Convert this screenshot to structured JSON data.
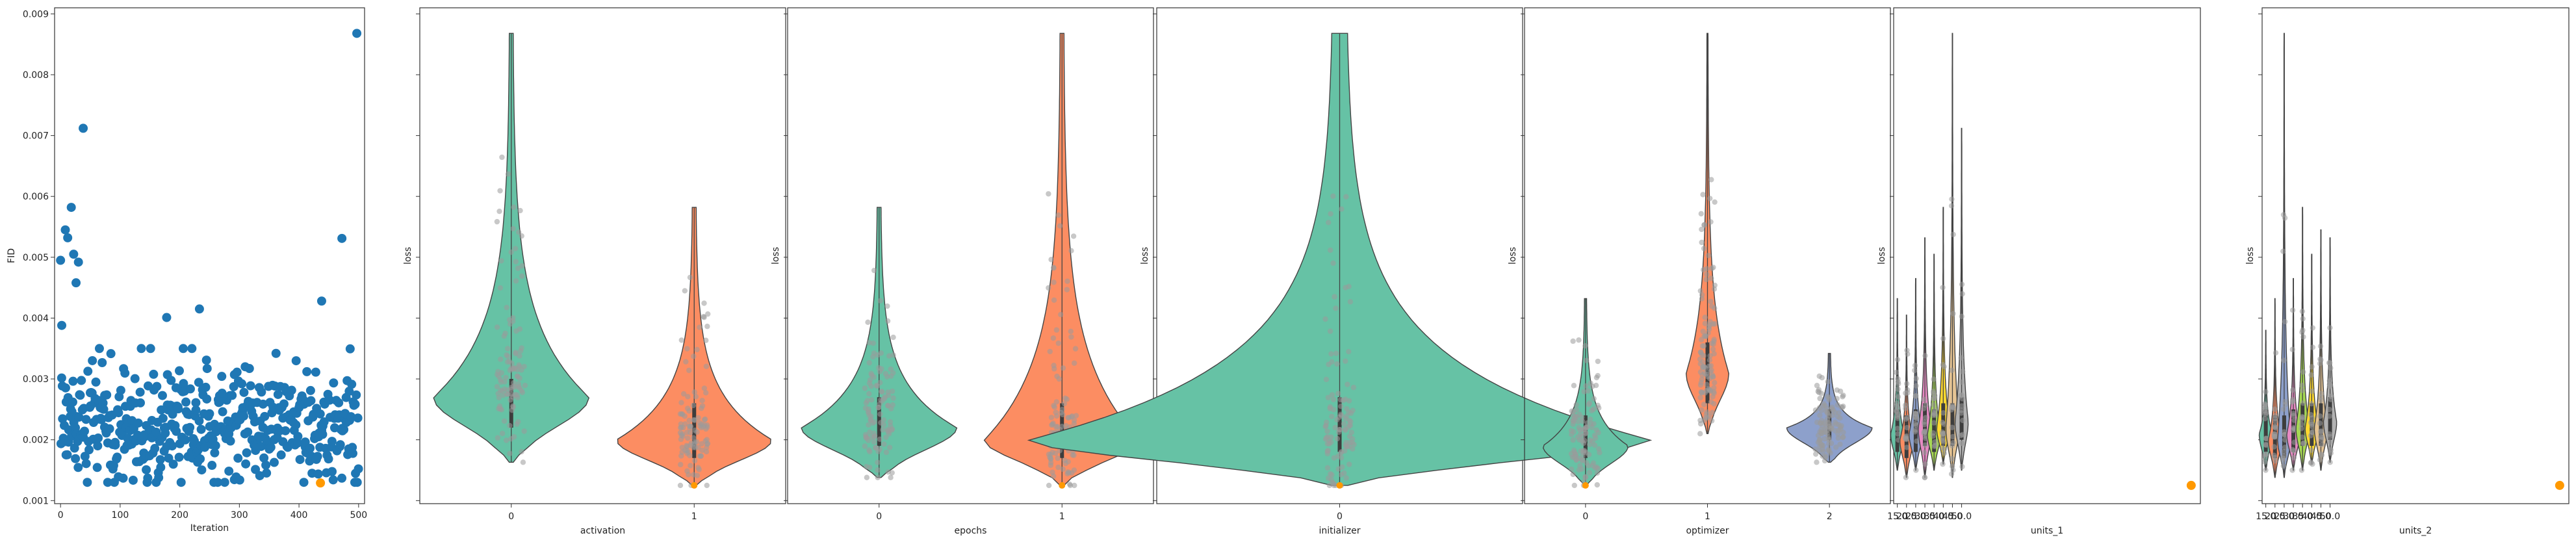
{
  "colors": {
    "scatter": "#1f77b4",
    "best": "#ff9900",
    "green": "#66c2a5",
    "orange": "#fc8d62",
    "blue": "#8da0cb",
    "jitter": "#9a9a9a",
    "frame": "#333333"
  },
  "chart_data": [
    {
      "type": "scatter",
      "xlabel": "Iteration",
      "ylabel": "FID",
      "xlim": [
        -10,
        510
      ],
      "ylim": [
        0.00095,
        0.0091
      ],
      "xticks": [
        "0",
        "100",
        "200",
        "300",
        "400",
        "500"
      ],
      "yticks": [
        "0.001",
        "0.002",
        "0.003",
        "0.004",
        "0.005",
        "0.006",
        "0.007",
        "0.008",
        "0.009"
      ],
      "highlight": {
        "x": 436,
        "y": 0.00129
      },
      "notable_points": [
        {
          "x": 0,
          "y": 0.00495
        },
        {
          "x": 2,
          "y": 0.00388
        },
        {
          "x": 8,
          "y": 0.00545
        },
        {
          "x": 12,
          "y": 0.00532
        },
        {
          "x": 18,
          "y": 0.00582
        },
        {
          "x": 22,
          "y": 0.00505
        },
        {
          "x": 26,
          "y": 0.00458
        },
        {
          "x": 30,
          "y": 0.00492
        },
        {
          "x": 38,
          "y": 0.00712
        },
        {
          "x": 178,
          "y": 0.00401
        },
        {
          "x": 233,
          "y": 0.00415
        },
        {
          "x": 438,
          "y": 0.00428
        },
        {
          "x": 472,
          "y": 0.00531
        },
        {
          "x": 497,
          "y": 0.00868
        }
      ],
      "bulk": {
        "count": 480,
        "low": 0.0013,
        "high": 0.0035,
        "median": 0.0021
      }
    },
    {
      "type": "violin",
      "xlabel": "activation",
      "ylabel": "loss",
      "categories": [
        "0",
        "1"
      ],
      "violins": [
        {
          "min": 0.00163,
          "max": 0.00868,
          "mode": 0.0027,
          "q1": 0.0022,
          "q3": 0.003,
          "width": 0.85,
          "color": "green"
        },
        {
          "min": 0.00125,
          "max": 0.00582,
          "mode": 0.002,
          "q1": 0.0017,
          "q3": 0.0026,
          "width": 0.85,
          "color": "orange"
        }
      ]
    },
    {
      "type": "violin",
      "xlabel": "epochs",
      "ylabel": "loss",
      "categories": [
        "0",
        "1"
      ],
      "violins": [
        {
          "min": 0.00138,
          "max": 0.00582,
          "mode": 0.0022,
          "q1": 0.0019,
          "q3": 0.0027,
          "width": 0.85,
          "color": "green"
        },
        {
          "min": 0.00125,
          "max": 0.00868,
          "mode": 0.002,
          "q1": 0.0017,
          "q3": 0.0026,
          "width": 0.85,
          "color": "orange"
        }
      ]
    },
    {
      "type": "violin",
      "xlabel": "initializer",
      "ylabel": "loss",
      "categories": [
        "0"
      ],
      "violins": [
        {
          "min": 0.00125,
          "max": 0.00868,
          "mode": 0.002,
          "q1": 0.0018,
          "q3": 0.0027,
          "width": 1.7,
          "color": "green"
        }
      ]
    },
    {
      "type": "violin",
      "xlabel": "optimizer",
      "ylabel": "loss",
      "categories": [
        "0",
        "1",
        "2"
      ],
      "violins": [
        {
          "min": 0.00125,
          "max": 0.00432,
          "mode": 0.0019,
          "q1": 0.0017,
          "q3": 0.0024,
          "width": 0.7,
          "color": "green"
        },
        {
          "min": 0.0021,
          "max": 0.00868,
          "mode": 0.0031,
          "q1": 0.0026,
          "q3": 0.0036,
          "width": 0.35,
          "color": "orange"
        },
        {
          "min": 0.00163,
          "max": 0.00342,
          "mode": 0.0022,
          "q1": 0.002,
          "q3": 0.0025,
          "width": 0.7,
          "color": "blue"
        }
      ]
    },
    {
      "type": "violin",
      "xlabel": "units_1",
      "ylabel": "loss",
      "categories": [
        "15.0",
        "20.0",
        "25.0",
        "30.0",
        "35.0",
        "40.0",
        "45.0",
        "50.0"
      ],
      "xlim": [
        13,
        180
      ],
      "best_point": {
        "x": 175,
        "y": 0.00125
      },
      "violins": [
        {
          "x": 15,
          "min": 0.0015,
          "max": 0.00432,
          "mode": 0.0021,
          "width": 3.6,
          "color": "green"
        },
        {
          "x": 20,
          "min": 0.00138,
          "max": 0.00405,
          "mode": 0.002,
          "width": 3.6,
          "color": "orange"
        },
        {
          "x": 25,
          "min": 0.0015,
          "max": 0.00465,
          "mode": 0.0021,
          "width": 3.6,
          "color": "blue"
        },
        {
          "x": 30,
          "min": 0.00138,
          "max": 0.00532,
          "mode": 0.0022,
          "width": 3.6,
          "color": "pink"
        },
        {
          "x": 35,
          "min": 0.0015,
          "max": 0.00505,
          "mode": 0.0021,
          "width": 3.6,
          "color": "lime"
        },
        {
          "x": 40,
          "min": 0.0016,
          "max": 0.00582,
          "mode": 0.0022,
          "width": 3.6,
          "color": "yellow"
        },
        {
          "x": 45,
          "min": 0.00138,
          "max": 0.00868,
          "mode": 0.0022,
          "width": 3.6,
          "color": "tan"
        },
        {
          "x": 50,
          "min": 0.0015,
          "max": 0.00712,
          "mode": 0.0023,
          "width": 3.6,
          "color": "grey"
        }
      ]
    },
    {
      "type": "violin",
      "xlabel": "units_2",
      "ylabel": "loss",
      "categories": [
        "15.0",
        "20.0",
        "25.0",
        "30.0",
        "35.0",
        "40.0",
        "45.0",
        "50.0"
      ],
      "xlim": [
        13,
        180
      ],
      "best_point": {
        "x": 175,
        "y": 0.00125
      },
      "violins": [
        {
          "x": 15,
          "min": 0.0015,
          "max": 0.0038,
          "mode": 0.0021,
          "width": 3.6,
          "color": "green"
        },
        {
          "x": 20,
          "min": 0.00138,
          "max": 0.00432,
          "mode": 0.002,
          "width": 3.6,
          "color": "orange"
        },
        {
          "x": 25,
          "min": 0.00138,
          "max": 0.00868,
          "mode": 0.002,
          "width": 3.6,
          "color": "blue"
        },
        {
          "x": 30,
          "min": 0.0015,
          "max": 0.00465,
          "mode": 0.0021,
          "width": 3.6,
          "color": "pink"
        },
        {
          "x": 35,
          "min": 0.0015,
          "max": 0.00582,
          "mode": 0.0022,
          "width": 3.6,
          "color": "lime"
        },
        {
          "x": 40,
          "min": 0.0016,
          "max": 0.00505,
          "mode": 0.0022,
          "width": 3.6,
          "color": "yellow"
        },
        {
          "x": 45,
          "min": 0.0015,
          "max": 0.00545,
          "mode": 0.0022,
          "width": 3.6,
          "color": "tan"
        },
        {
          "x": 50,
          "min": 0.00163,
          "max": 0.00532,
          "mode": 0.0023,
          "width": 3.6,
          "color": "grey"
        }
      ]
    }
  ]
}
